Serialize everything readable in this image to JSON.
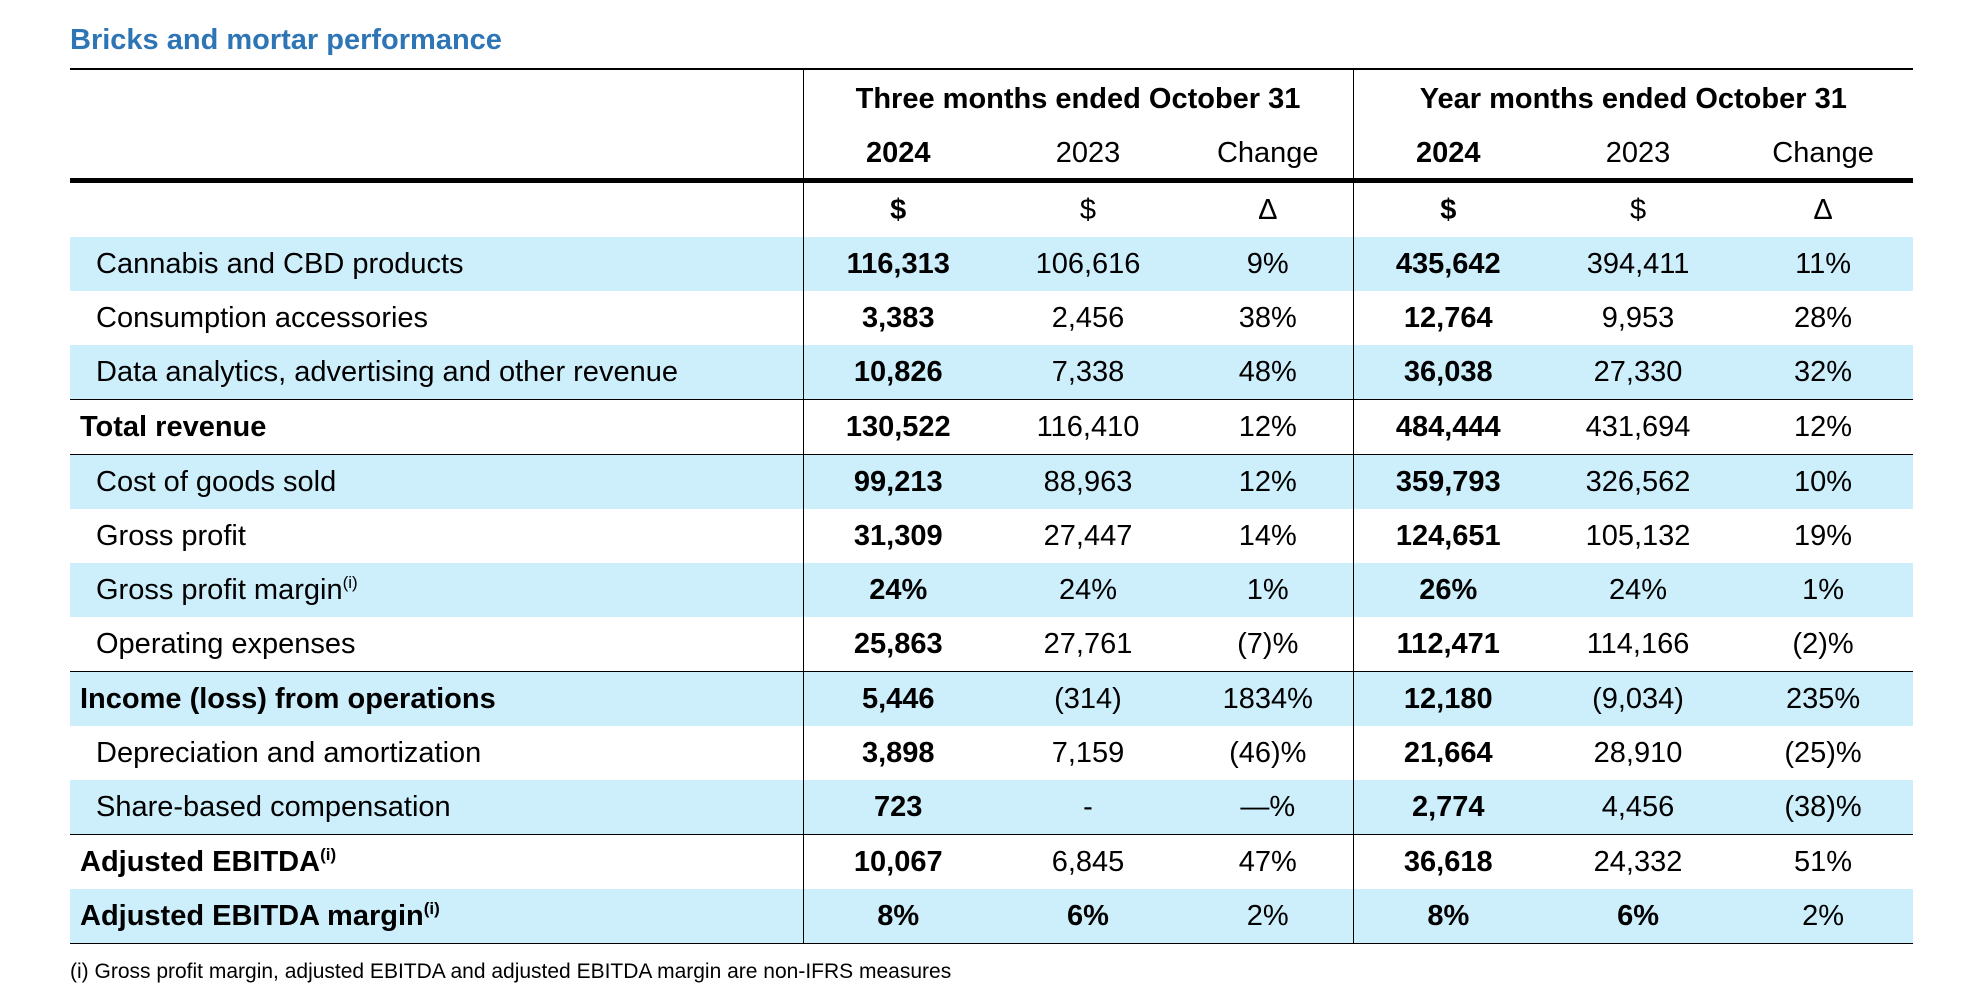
{
  "title": "Bricks and mortar performance",
  "header": {
    "group_three": "Three months ended October 31",
    "group_year": "Year months ended October 31",
    "years": [
      "2024",
      "2023",
      "Change",
      "2024",
      "2023",
      "Change"
    ],
    "units": [
      "$",
      "$",
      "Δ",
      "$",
      "$",
      "Δ"
    ]
  },
  "rows": [
    {
      "label": "Cannabis and CBD products",
      "sup": "",
      "values": [
        "116,313",
        "106,616",
        "9%",
        "435,642",
        "394,411",
        "11%"
      ]
    },
    {
      "label": "Consumption accessories",
      "sup": "",
      "values": [
        "3,383",
        "2,456",
        "38%",
        "12,764",
        "9,953",
        "28%"
      ]
    },
    {
      "label": "Data analytics, advertising and other revenue",
      "sup": "",
      "values": [
        "10,826",
        "7,338",
        "48%",
        "36,038",
        "27,330",
        "32%"
      ]
    },
    {
      "label": "Total revenue",
      "sup": "",
      "values": [
        "130,522",
        "116,410",
        "12%",
        "484,444",
        "431,694",
        "12%"
      ]
    },
    {
      "label": "Cost of goods sold",
      "sup": "",
      "values": [
        "99,213",
        "88,963",
        "12%",
        "359,793",
        "326,562",
        "10%"
      ]
    },
    {
      "label": "Gross profit",
      "sup": "",
      "values": [
        "31,309",
        "27,447",
        "14%",
        "124,651",
        "105,132",
        "19%"
      ]
    },
    {
      "label": "Gross profit margin",
      "sup": "(i)",
      "values": [
        "24%",
        "24%",
        "1%",
        "26%",
        "24%",
        "1%"
      ]
    },
    {
      "label": "Operating expenses",
      "sup": "",
      "values": [
        "25,863",
        "27,761",
        "(7)%",
        "112,471",
        "114,166",
        "(2)%"
      ]
    },
    {
      "label": "Income (loss) from operations",
      "sup": "",
      "values": [
        "5,446",
        "(314)",
        "1834%",
        "12,180",
        "(9,034)",
        "235%"
      ]
    },
    {
      "label": "Depreciation and amortization",
      "sup": "",
      "values": [
        "3,898",
        "7,159",
        "(46)%",
        "21,664",
        "28,910",
        "(25)%"
      ]
    },
    {
      "label": "Share-based compensation",
      "sup": "",
      "values": [
        "723",
        "-",
        "—%",
        "2,774",
        "4,456",
        "(38)%"
      ]
    },
    {
      "label": "Adjusted EBITDA",
      "sup": "(i)",
      "values": [
        "10,067",
        "6,845",
        "47%",
        "36,618",
        "24,332",
        "51%"
      ]
    },
    {
      "label": "Adjusted EBITDA margin",
      "sup": "(i)",
      "values": [
        "8%",
        "6%",
        "2%",
        "8%",
        "6%",
        "2%"
      ]
    }
  ],
  "footnote": "(i) Gross profit margin, adjusted EBITDA and adjusted EBITDA margin are non-IFRS measures"
}
